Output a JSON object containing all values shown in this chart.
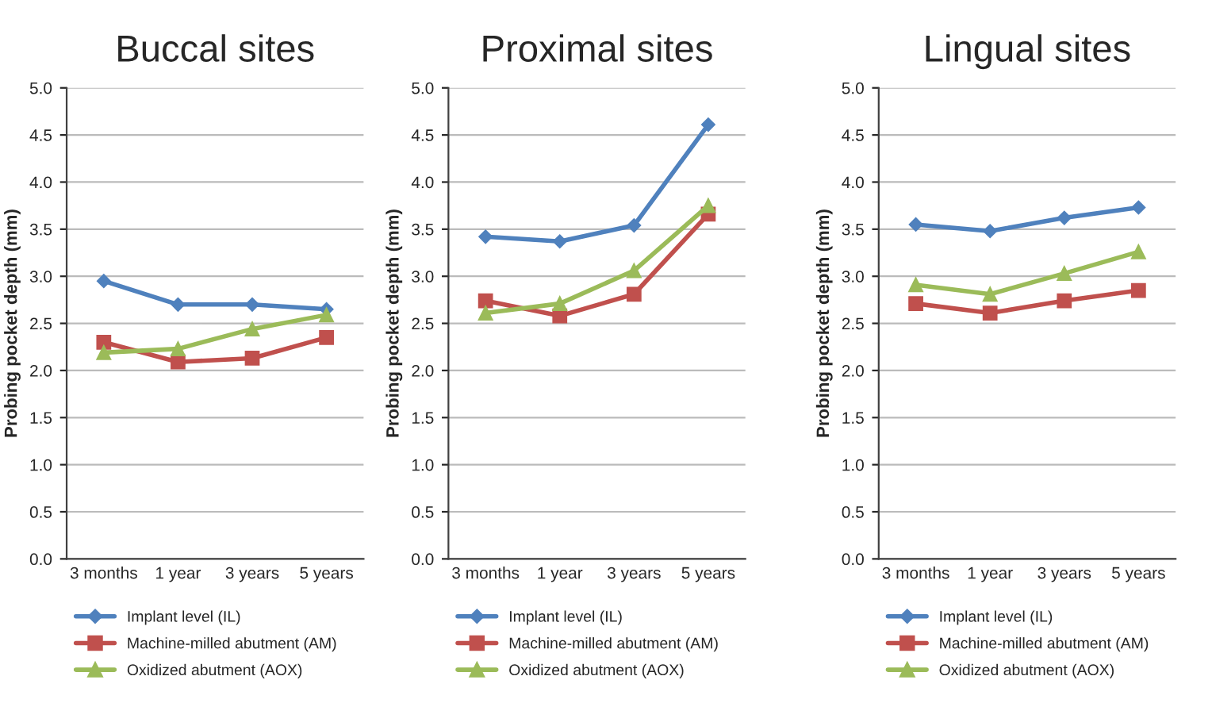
{
  "chart_data": [
    {
      "type": "line",
      "title": "Buccal sites",
      "ylabel": "Probing pocket depth (mm)",
      "categories": [
        "3 months",
        "1 year",
        "3 years",
        "5 years"
      ],
      "ylim": [
        0,
        5
      ],
      "yticks": [
        {
          "value": 0,
          "label": "0.0"
        },
        {
          "value": 0.5,
          "label": "0.5"
        },
        {
          "value": 1,
          "label": "1.0"
        },
        {
          "value": 1.5,
          "label": "1.5"
        },
        {
          "value": 2,
          "label": "2.0"
        },
        {
          "value": 2.5,
          "label": "2.5"
        },
        {
          "value": 3,
          "label": "3.0"
        },
        {
          "value": 3.5,
          "label": "3.5"
        },
        {
          "value": 4,
          "label": "4.0"
        },
        {
          "value": 4.5,
          "label": "4.5"
        },
        {
          "value": 5,
          "label": "5.0"
        }
      ],
      "grid": "y",
      "legend": "bottom",
      "line_style": "solid",
      "series": [
        {
          "name": "Implant level (IL)",
          "color": "#4f81bd",
          "marker": "diamond",
          "values": [
            2.95,
            2.7,
            2.7,
            2.65
          ]
        },
        {
          "name": "Machine-milled abutment (AM)",
          "color": "#c0504d",
          "marker": "square",
          "values": [
            2.3,
            2.09,
            2.13,
            2.35
          ]
        },
        {
          "name": "Oxidized abutment (AOX)",
          "color": "#9bbb59",
          "marker": "triangle",
          "values": [
            2.19,
            2.23,
            2.44,
            2.59
          ]
        }
      ]
    },
    {
      "type": "line",
      "title": "Proximal sites",
      "ylabel": "Probing pocket depth (mm)",
      "categories": [
        "3 months",
        "1 year",
        "3 years",
        "5 years"
      ],
      "ylim": [
        0,
        5
      ],
      "yticks": [
        {
          "value": 0,
          "label": "0.0"
        },
        {
          "value": 0.5,
          "label": "0.5"
        },
        {
          "value": 1,
          "label": "1.0"
        },
        {
          "value": 1.5,
          "label": "1.5"
        },
        {
          "value": 2,
          "label": "2.0"
        },
        {
          "value": 2.5,
          "label": "2.5"
        },
        {
          "value": 3,
          "label": "3.0"
        },
        {
          "value": 3.5,
          "label": "3.5"
        },
        {
          "value": 4,
          "label": "4.0"
        },
        {
          "value": 4.5,
          "label": "4.5"
        },
        {
          "value": 5,
          "label": "5.0"
        }
      ],
      "grid": "y",
      "legend": "bottom",
      "line_style": "solid",
      "series": [
        {
          "name": "Implant level (IL)",
          "color": "#4f81bd",
          "marker": "diamond",
          "values": [
            3.42,
            3.37,
            3.54,
            4.61
          ]
        },
        {
          "name": "Machine-milled abutment (AM)",
          "color": "#c0504d",
          "marker": "square",
          "values": [
            2.74,
            2.58,
            2.81,
            3.66
          ]
        },
        {
          "name": "Oxidized abutment (AOX)",
          "color": "#9bbb59",
          "marker": "triangle",
          "values": [
            2.61,
            2.71,
            3.06,
            3.75
          ]
        }
      ]
    },
    {
      "type": "line",
      "title": "Lingual sites",
      "ylabel": "Probing pocket depth (mm)",
      "categories": [
        "3 months",
        "1 year",
        "3 years",
        "5 years"
      ],
      "ylim": [
        0,
        5
      ],
      "yticks": [
        {
          "value": 0,
          "label": "0.0"
        },
        {
          "value": 0.5,
          "label": "0.5"
        },
        {
          "value": 1,
          "label": "1.0"
        },
        {
          "value": 1.5,
          "label": "1.5"
        },
        {
          "value": 2,
          "label": "2.0"
        },
        {
          "value": 2.5,
          "label": "2.5"
        },
        {
          "value": 3,
          "label": "3.0"
        },
        {
          "value": 3.5,
          "label": "3.5"
        },
        {
          "value": 4,
          "label": "4.0"
        },
        {
          "value": 4.5,
          "label": "4.5"
        },
        {
          "value": 5,
          "label": "5.0"
        }
      ],
      "grid": "y",
      "legend": "bottom",
      "line_style": "solid",
      "series": [
        {
          "name": "Implant level (IL)",
          "color": "#4f81bd",
          "marker": "diamond",
          "values": [
            3.55,
            3.48,
            3.62,
            3.73
          ]
        },
        {
          "name": "Machine-milled abutment (AM)",
          "color": "#c0504d",
          "marker": "square",
          "values": [
            2.71,
            2.61,
            2.74,
            2.85
          ]
        },
        {
          "name": "Oxidized abutment (AOX)",
          "color": "#9bbb59",
          "marker": "triangle",
          "values": [
            2.91,
            2.81,
            3.03,
            3.26
          ]
        }
      ]
    }
  ]
}
